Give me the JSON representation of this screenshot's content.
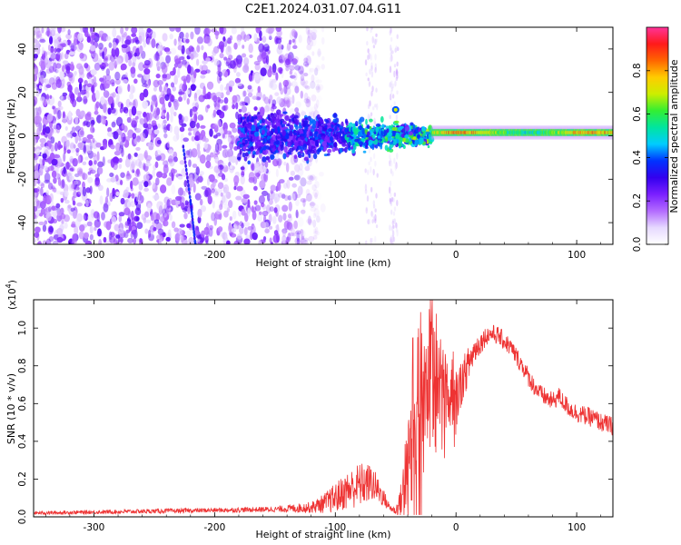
{
  "figure": {
    "title": "C2E1.2024.031.07.04.G11"
  },
  "chart_data": [
    {
      "type": "heatmap",
      "title": "C2E1.2024.031.07.04.G11",
      "xlabel": "Height of straight line (km)",
      "ylabel": "Frequency (Hz)",
      "xlim": [
        -350,
        130
      ],
      "ylim": [
        -50,
        50
      ],
      "xticks": [
        -300,
        -200,
        -100,
        0,
        100
      ],
      "yticks": [
        -40,
        -20,
        0,
        20,
        40
      ],
      "colorbar": {
        "label": "Normalized spectral amplitude",
        "range": [
          0,
          1
        ],
        "ticks": [
          "0.0",
          "0.2",
          "0.4",
          "0.6",
          "0.8"
        ],
        "colors": [
          "#ffffff",
          "#e6d9ff",
          "#b36bff",
          "#7a1fff",
          "#3300ee",
          "#0033ff",
          "#00ccff",
          "#00e5a0",
          "#33ee33",
          "#ccee00",
          "#ffcc00",
          "#ff6600",
          "#ff1a1a",
          "#ff3399"
        ]
      },
      "features": [
        {
          "name": "noise field",
          "x_from": -350,
          "x_to": -110,
          "level": 0.18
        },
        {
          "name": "noise streak",
          "x_from": -75,
          "x_to": -65,
          "level": 0.08
        },
        {
          "name": "noise streak",
          "x_from": -55,
          "x_to": -48,
          "level": 0.08
        },
        {
          "name": "diagonal trace",
          "points": [
            [
              -226,
              -5
            ],
            [
              -220,
              -30
            ],
            [
              -216,
              -50
            ]
          ],
          "level": 0.28
        },
        {
          "name": "signal band",
          "x_from": -180,
          "x_to": -20,
          "freq_halfwidth": 14,
          "level": 0.25
        },
        {
          "name": "signal line",
          "x_from": -20,
          "x_to": 130,
          "freq": 1.5,
          "level": 0.85
        },
        {
          "name": "isolated blob",
          "x": -50,
          "freq": 12,
          "level": 0.4
        }
      ]
    },
    {
      "type": "line",
      "xlabel": "Height of straight line (km)",
      "ylabel": "SNR (10 * v/v)",
      "y_multiplier_label": "(x10",
      "y_multiplier_exp": "4",
      "xlim": [
        -350,
        130
      ],
      "ylim": [
        0,
        1.15
      ],
      "xticks": [
        -300,
        -200,
        -100,
        0,
        100
      ],
      "yticks": [
        "0.0",
        "0.2",
        "0.4",
        "0.6",
        "0.8",
        "1.0"
      ],
      "color": "#ee3333",
      "series": [
        {
          "x": [
            -350,
            -300,
            -250,
            -200,
            -150,
            -120,
            -110,
            -100,
            -90,
            -80,
            -70,
            -62,
            -55,
            -50,
            -45,
            -40,
            -35,
            -30,
            -25,
            -20,
            -15,
            -10,
            -5,
            0,
            5,
            10,
            15,
            20,
            25,
            30,
            35,
            40,
            45,
            50,
            55,
            60,
            65,
            70,
            75,
            80,
            85,
            90,
            95,
            100,
            105,
            110,
            115,
            120,
            125,
            130
          ],
          "y": [
            0.02,
            0.025,
            0.03,
            0.035,
            0.04,
            0.05,
            0.07,
            0.1,
            0.14,
            0.17,
            0.18,
            0.12,
            0.05,
            0.03,
            0.1,
            0.3,
            0.45,
            0.65,
            0.6,
            0.7,
            0.62,
            0.68,
            0.66,
            0.62,
            0.72,
            0.8,
            0.88,
            0.92,
            0.96,
            0.97,
            0.96,
            0.93,
            0.9,
            0.85,
            0.8,
            0.74,
            0.69,
            0.65,
            0.63,
            0.61,
            0.64,
            0.6,
            0.57,
            0.55,
            0.54,
            0.53,
            0.52,
            0.5,
            0.49,
            0.48
          ],
          "noise": [
            0.01,
            0.01,
            0.012,
            0.012,
            0.015,
            0.03,
            0.05,
            0.08,
            0.1,
            0.12,
            0.1,
            0.06,
            0.02,
            0.02,
            0.1,
            0.28,
            0.38,
            0.4,
            0.35,
            0.35,
            0.3,
            0.25,
            0.2,
            0.15,
            0.12,
            0.1,
            0.08,
            0.06,
            0.05,
            0.05,
            0.05,
            0.05,
            0.05,
            0.05,
            0.05,
            0.05,
            0.05,
            0.05,
            0.05,
            0.05,
            0.05,
            0.05,
            0.05,
            0.05,
            0.05,
            0.05,
            0.05,
            0.05,
            0.05,
            0.05
          ]
        }
      ]
    }
  ]
}
